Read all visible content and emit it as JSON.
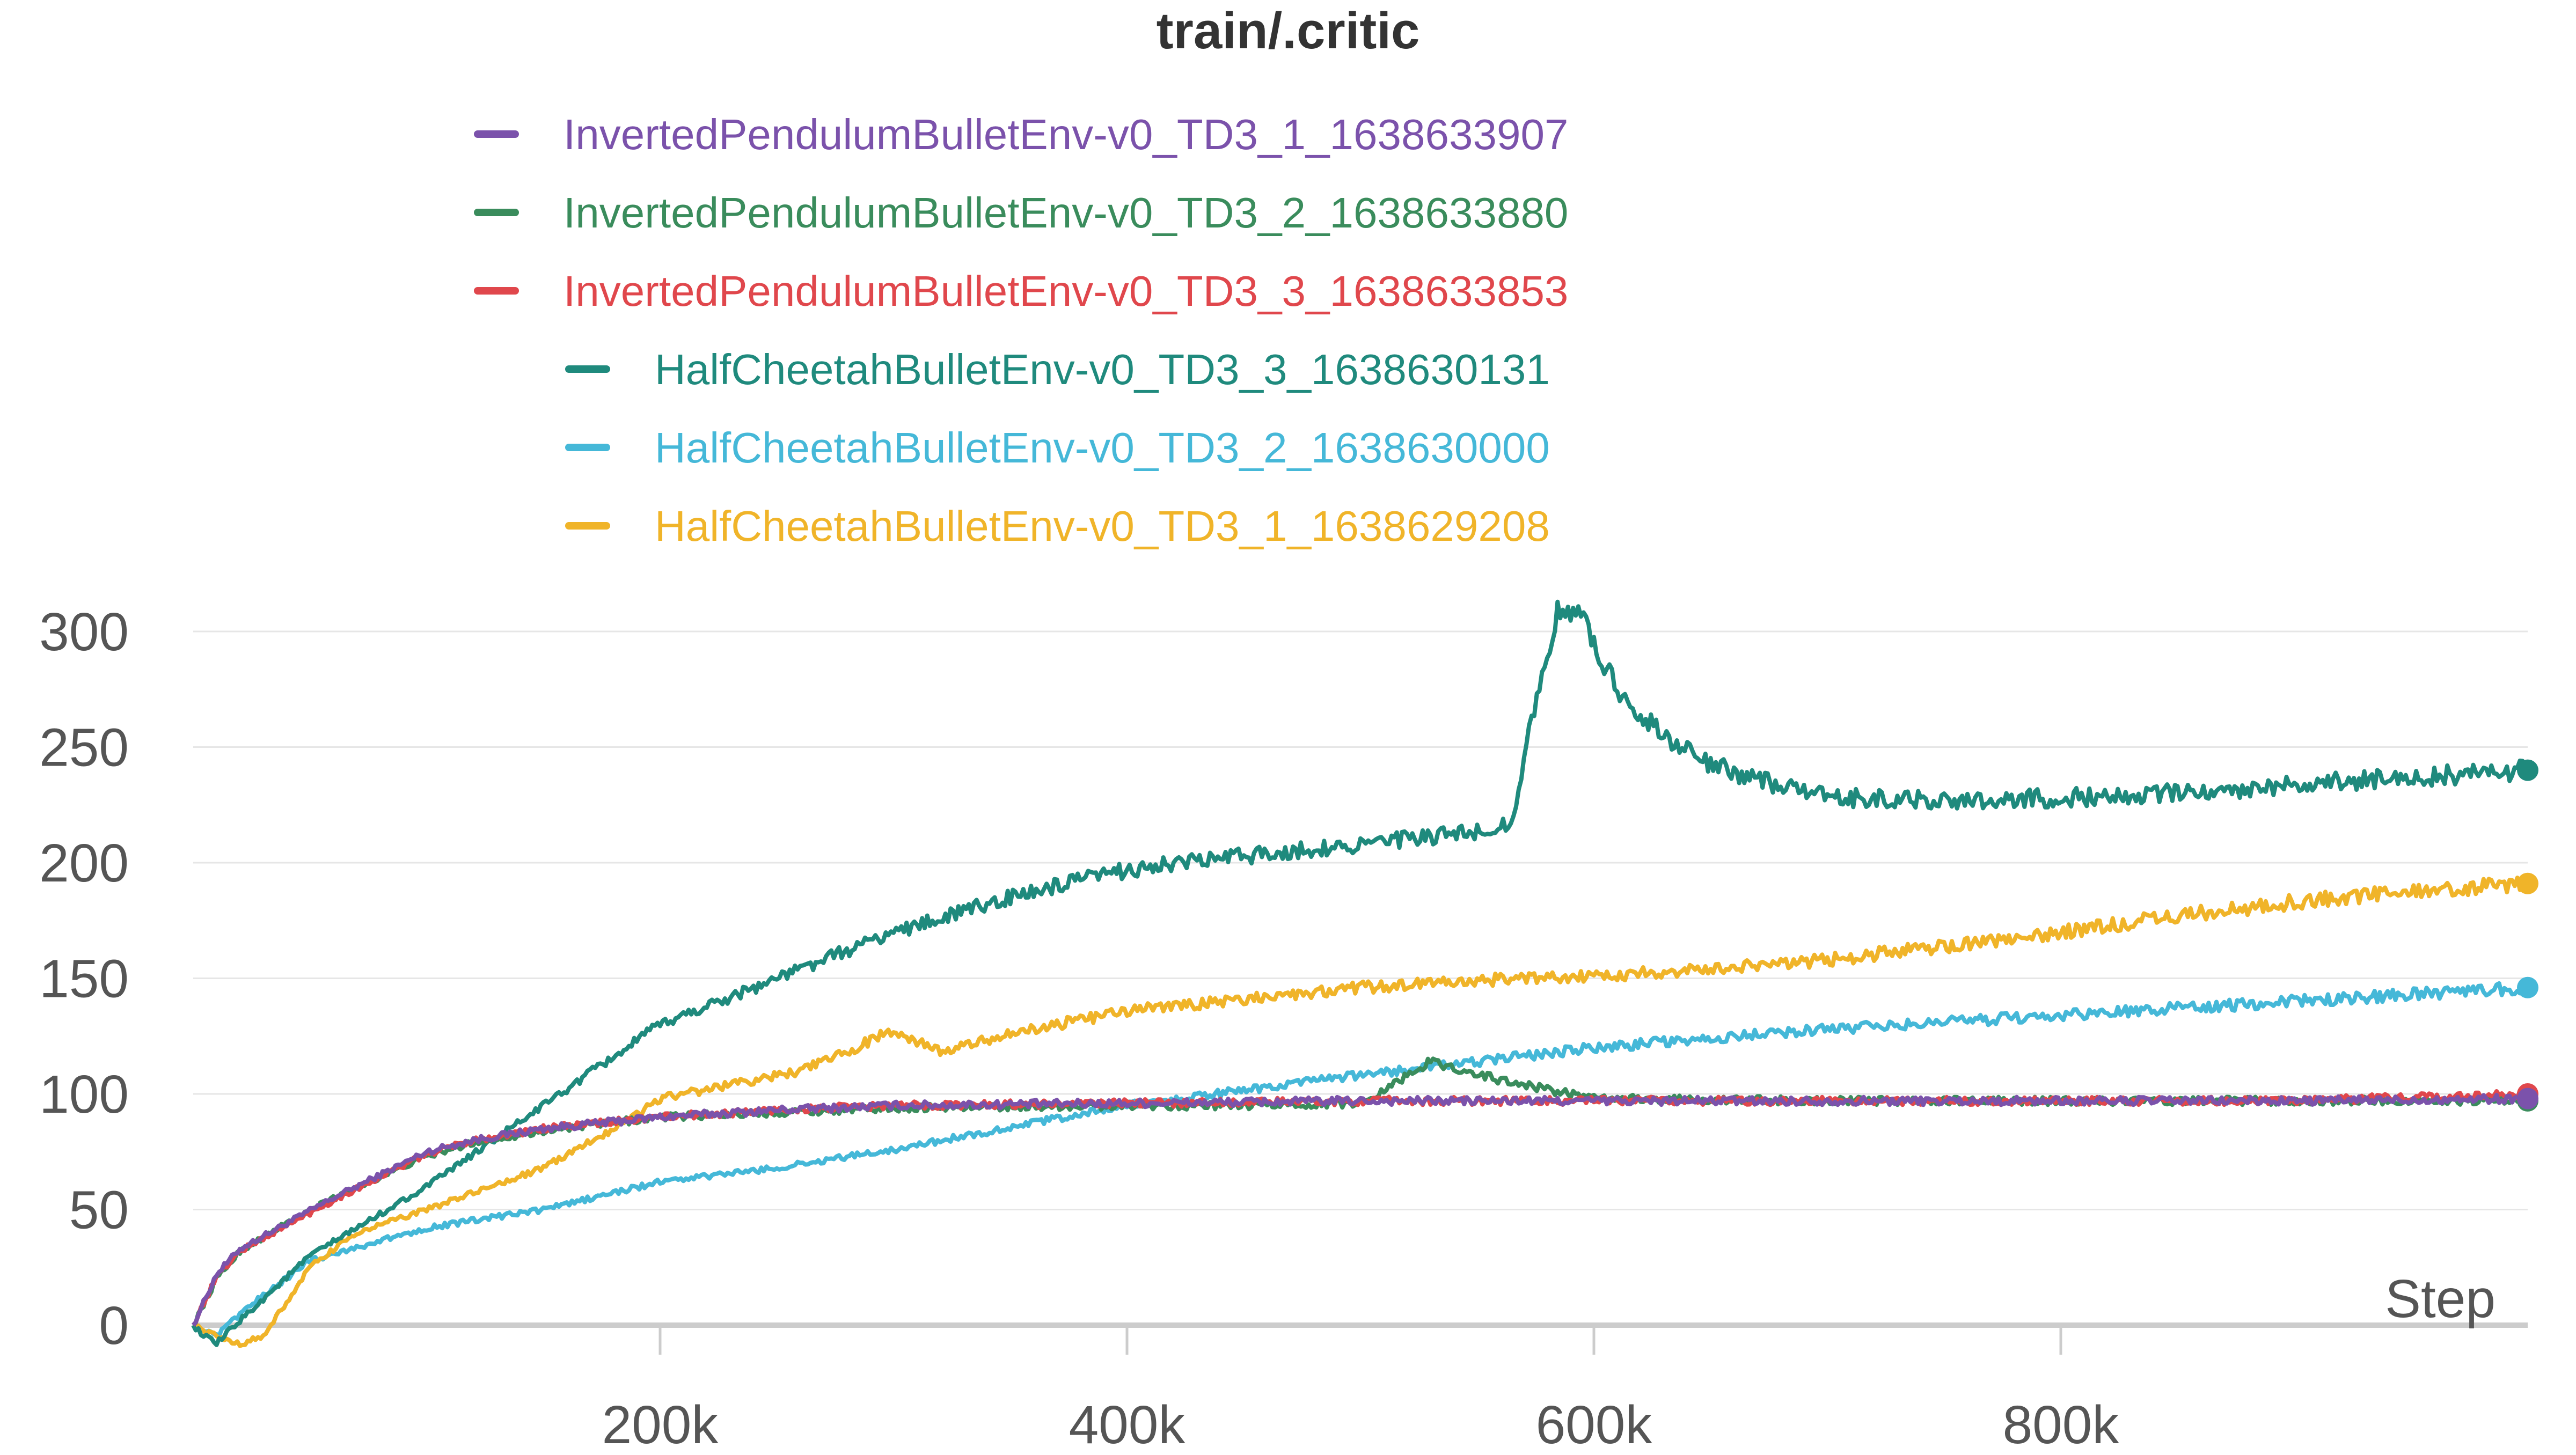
{
  "chart_data": {
    "type": "line",
    "title": "train/.critic",
    "xlabel": "Step",
    "ylabel": "",
    "xlim": [
      0,
      1000000
    ],
    "ylim": [
      0,
      320
    ],
    "x_ticks": [
      200000,
      400000,
      600000,
      800000
    ],
    "x_tick_labels": [
      "200k",
      "400k",
      "600k",
      "800k"
    ],
    "y_ticks": [
      0,
      50,
      100,
      150,
      200,
      250,
      300
    ],
    "y_tick_labels": [
      "0",
      "50",
      "100",
      "150",
      "200",
      "250",
      "300"
    ],
    "grid": "horizontal",
    "legend_position": "top",
    "series": [
      {
        "name": "InvertedPendulumBulletEnv-v0_TD3_1_1638633907",
        "color": "#7b52ab",
        "x": [
          0,
          10000,
          20000,
          40000,
          60000,
          80000,
          100000,
          120000,
          150000,
          200000,
          250000,
          300000,
          400000,
          500000,
          600000,
          700000,
          800000,
          900000,
          1000000
        ],
        "y": [
          0,
          22,
          33,
          44,
          55,
          65,
          75,
          80,
          85,
          90,
          93,
          95,
          96,
          97,
          97,
          97,
          97,
          97,
          98
        ]
      },
      {
        "name": "InvertedPendulumBulletEnv-v0_TD3_2_1638633880",
        "color": "#3a8c5c",
        "x": [
          0,
          10000,
          20000,
          40000,
          60000,
          80000,
          100000,
          120000,
          150000,
          200000,
          250000,
          300000,
          400000,
          450000,
          500000,
          530000,
          560000,
          600000,
          700000,
          800000,
          900000,
          1000000
        ],
        "y": [
          0,
          20,
          32,
          44,
          55,
          64,
          73,
          79,
          84,
          90,
          92,
          94,
          95,
          95,
          96,
          114,
          106,
          98,
          97,
          97,
          97,
          97
        ]
      },
      {
        "name": "InvertedPendulumBulletEnv-v0_TD3_3_1638633853",
        "color": "#e0474c",
        "x": [
          0,
          10000,
          20000,
          40000,
          60000,
          80000,
          100000,
          120000,
          150000,
          200000,
          250000,
          300000,
          400000,
          500000,
          600000,
          700000,
          800000,
          900000,
          1000000
        ],
        "y": [
          0,
          21,
          32,
          43,
          54,
          64,
          74,
          80,
          85,
          90,
          93,
          95,
          96,
          97,
          97,
          97,
          97,
          97,
          100
        ]
      },
      {
        "name": "HalfCheetahBulletEnv-v0_TD3_3_1638630131",
        "color": "#1f8a7d",
        "x": [
          0,
          5000,
          10000,
          20000,
          50000,
          100000,
          150000,
          200000,
          250000,
          300000,
          350000,
          400000,
          450000,
          500000,
          550000,
          565000,
          575000,
          585000,
          595000,
          610000,
          630000,
          650000,
          700000,
          750000,
          800000,
          850000,
          900000,
          950000,
          1000000
        ],
        "y": [
          0,
          -5,
          -8,
          2,
          30,
          60,
          95,
          130,
          150,
          170,
          185,
          197,
          203,
          208,
          213,
          218,
          270,
          310,
          305,
          275,
          255,
          242,
          228,
          227,
          228,
          230,
          234,
          237,
          240
        ]
      },
      {
        "name": "HalfCheetahBulletEnv-v0_TD3_2_1638630000",
        "color": "#45b8d8",
        "x": [
          0,
          10000,
          20000,
          50000,
          100000,
          150000,
          200000,
          250000,
          300000,
          400000,
          500000,
          600000,
          700000,
          800000,
          900000,
          1000000
        ],
        "y": [
          0,
          -5,
          5,
          28,
          42,
          50,
          62,
          68,
          76,
          95,
          108,
          120,
          128,
          134,
          140,
          146
        ]
      },
      {
        "name": "HalfCheetahBulletEnv-v0_TD3_1_1638629208",
        "color": "#f0b429",
        "x": [
          0,
          10000,
          20000,
          30000,
          50000,
          70000,
          100000,
          150000,
          180000,
          200000,
          230000,
          260000,
          280000,
          300000,
          320000,
          350000,
          400000,
          450000,
          500000,
          550000,
          600000,
          650000,
          700000,
          750000,
          800000,
          850000,
          900000,
          950000,
          1000000
        ],
        "y": [
          0,
          -5,
          -8,
          -5,
          25,
          40,
          50,
          68,
          85,
          98,
          104,
          110,
          118,
          128,
          118,
          126,
          136,
          141,
          146,
          149,
          151,
          154,
          158,
          164,
          170,
          177,
          183,
          188,
          191
        ]
      }
    ]
  }
}
